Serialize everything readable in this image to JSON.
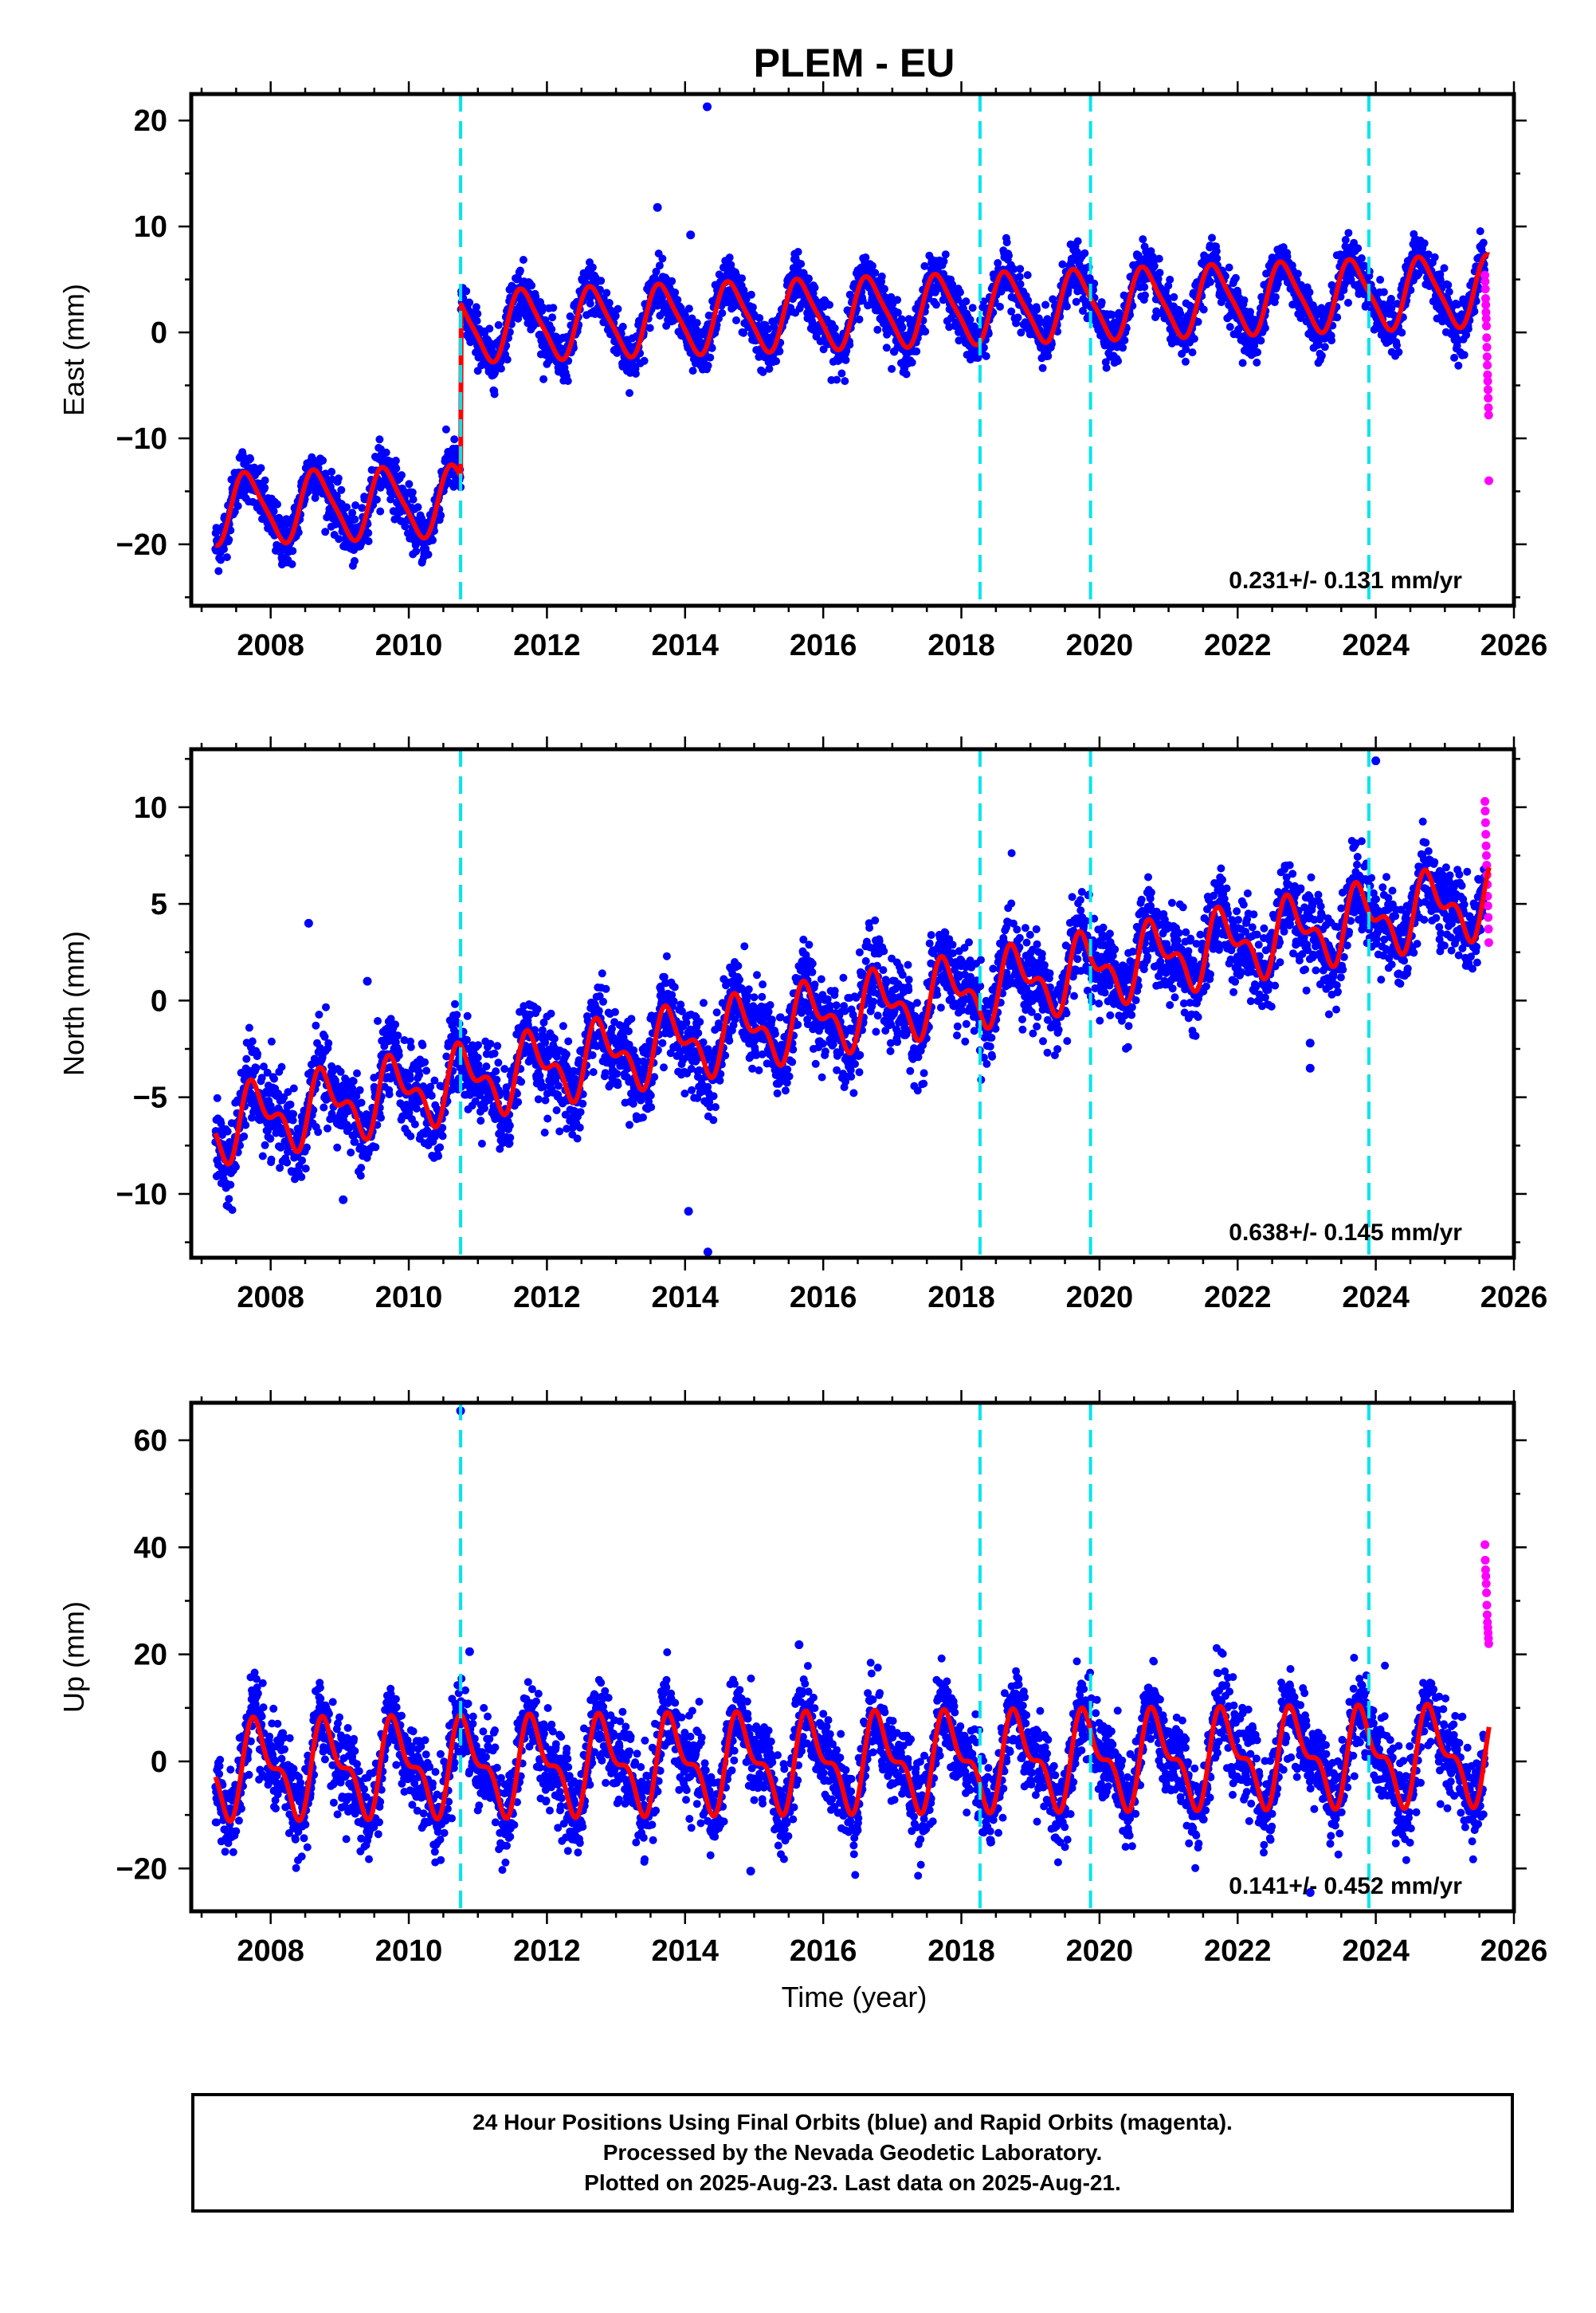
{
  "chart_data": {
    "title": "PLEM - EU",
    "xlabel": "Time (year)",
    "xlim": [
      2006.85,
      2026.0
    ],
    "xticks": [
      2008,
      2010,
      2012,
      2014,
      2016,
      2018,
      2020,
      2022,
      2024,
      2026
    ],
    "xtick_labels": [
      "2008",
      "2010",
      "2012",
      "2014",
      "2016",
      "2018",
      "2020",
      "2022",
      "2024",
      "2026"
    ],
    "data_start": 2007.2,
    "data_end": 2025.64,
    "rapid_start": 2025.58,
    "equipment_changes": [
      2010.75,
      2018.27,
      2019.87,
      2023.9
    ],
    "colors": {
      "final_orbits": "#0000ff",
      "rapid_orbits": "#ff00ff",
      "model_fit": "#ff0000",
      "equipment_change": "#00e5ee"
    },
    "panels": [
      {
        "id": "east",
        "type": "scatter",
        "ylabel": "East (mm)",
        "ylim": [
          -25.8,
          22.5
        ],
        "yticks": [
          -20,
          -10,
          0,
          10,
          20
        ],
        "ytick_labels": [
          "−20",
          "−10",
          "0",
          "10",
          "20"
        ],
        "velocity": "0.231+/- 0.131 mm/yr",
        "model": {
          "amp": 3.2,
          "phase": 0.42,
          "semi_amp": 0.2,
          "noise": 1.2,
          "segments": [
            {
              "start": 2007.2,
              "end": 2010.75,
              "offset": -16.7,
              "slope": 0.231
            },
            {
              "start": 2010.75,
              "end": 2025.64,
              "offset": 0.5,
              "slope": 0.231,
              "ref": 2010.75
            }
          ]
        },
        "outliers": [
          [
            2014.32,
            21.3
          ],
          [
            2013.6,
            11.8
          ],
          [
            2014.08,
            9.2
          ]
        ],
        "rapid_values": [
          5.4,
          4.8,
          4.1,
          3.2,
          2.6,
          1.9,
          1.3,
          0.6,
          -0.5,
          -1.4,
          -2.3,
          -3.1,
          -4.0,
          -4.6,
          -5.4,
          -6.2,
          -7.1,
          -7.8,
          -14.0
        ]
      },
      {
        "id": "north",
        "type": "scatter",
        "ylabel": "North (mm)",
        "ylim": [
          -13.3,
          13.0
        ],
        "yticks": [
          -10,
          -5,
          0,
          5,
          10
        ],
        "ytick_labels": [
          "−10",
          "−5",
          "0",
          "5",
          "10"
        ],
        "velocity": "0.638+/- 0.145 mm/yr",
        "model": {
          "amp": 1.5,
          "phase": 0.55,
          "semi_amp": 0.6,
          "noise": 1.1,
          "segments": [
            {
              "start": 2007.2,
              "end": 2025.64,
              "offset": -6.5,
              "slope": 0.638
            }
          ]
        },
        "outliers": [
          [
            2008.55,
            4.0
          ],
          [
            2009.4,
            1.0
          ],
          [
            2014.05,
            -10.9
          ],
          [
            2014.33,
            -13.0
          ],
          [
            2023.05,
            -3.5
          ],
          [
            2023.05,
            -2.2
          ],
          [
            2024.0,
            12.4
          ],
          [
            2009.05,
            -10.3
          ]
        ],
        "rapid_values": [
          10.3,
          9.8,
          9.2,
          8.6,
          8.0,
          7.5,
          7.0,
          6.5,
          6.0,
          5.4,
          4.9,
          4.3,
          3.7,
          3.0
        ]
      },
      {
        "id": "up",
        "type": "scatter",
        "ylabel": "Up (mm)",
        "ylim": [
          -28.0,
          67.0
        ],
        "yticks": [
          -20,
          0,
          20,
          40,
          60
        ],
        "ytick_labels": [
          "−20",
          "0",
          "20",
          "40",
          "60"
        ],
        "velocity": "0.141+/- 0.452 mm/yr",
        "model": {
          "amp": 7.5,
          "phase": 0.58,
          "semi_amp": 0.5,
          "noise": 4.0,
          "segments": [
            {
              "start": 2007.2,
              "end": 2025.64,
              "offset": -1.5,
              "slope": 0.141
            }
          ]
        },
        "outliers": [
          [
            2010.75,
            65.5
          ],
          [
            2010.88,
            20.5
          ],
          [
            2015.65,
            21.8
          ],
          [
            2014.95,
            -20.5
          ],
          [
            2023.05,
            -24.5
          ]
        ],
        "rapid_values": [
          40.5,
          37.6,
          35.8,
          34.6,
          33.2,
          31.5,
          29.2,
          27.4,
          26.0,
          25.0,
          24.0,
          23.0,
          22.0
        ]
      }
    ]
  },
  "footer": {
    "line1": "24 Hour Positions Using Final Orbits (blue) and Rapid Orbits (magenta).",
    "line2": "Processed by the Nevada Geodetic Laboratory.",
    "line3": "Plotted on 2025-Aug-23. Last data on 2025-Aug-21."
  }
}
